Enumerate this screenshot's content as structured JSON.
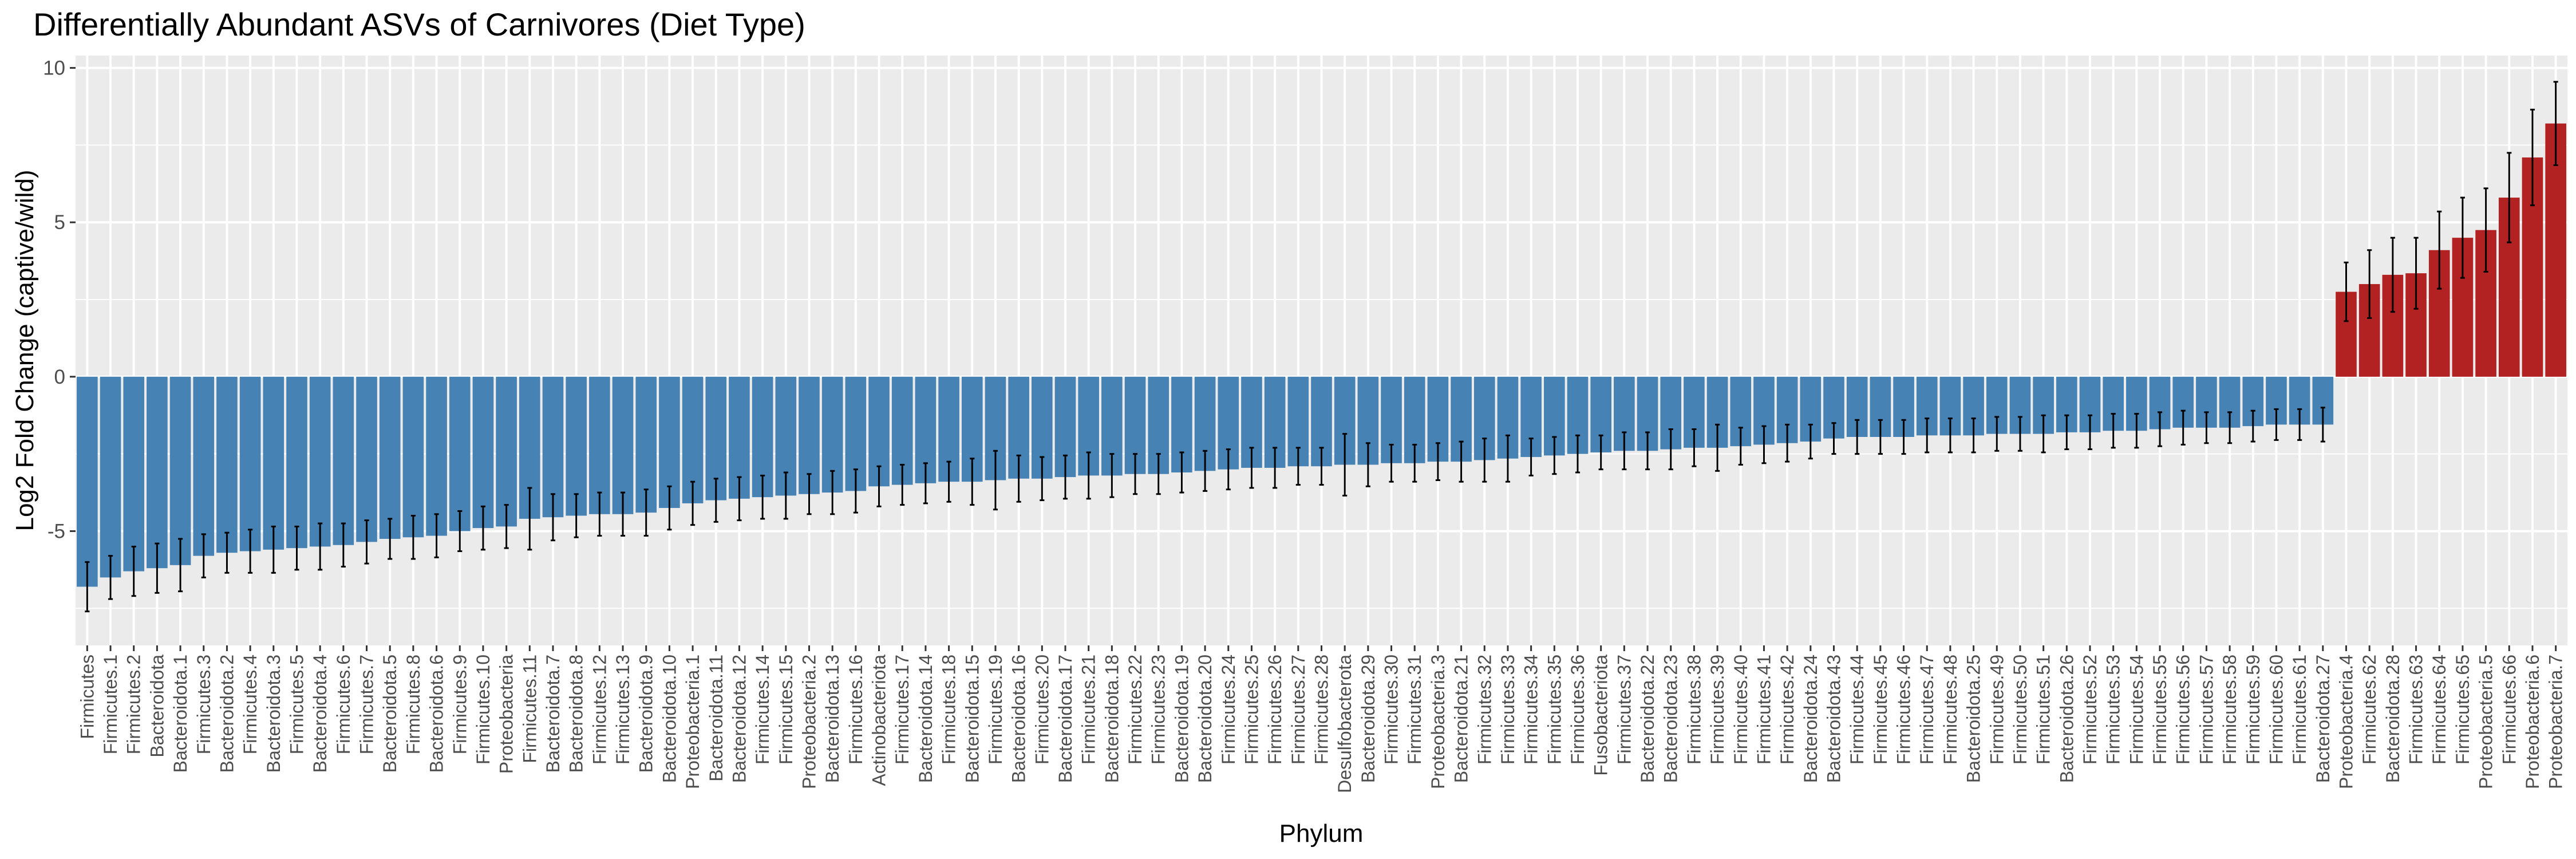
{
  "chart_data": {
    "type": "bar",
    "title": "Differentially Abundant ASVs of Carnivores (Diet Type)",
    "xlabel": "Phylum",
    "ylabel": "Log2 Fold Change (captive/wild)",
    "ylim": [
      -8.7,
      10.4
    ],
    "yticks": [
      -5,
      0,
      5,
      10
    ],
    "grid": true,
    "legend": "none",
    "colors": {
      "negative": "#4682B4",
      "positive": "#B22222",
      "panel": "#EBEBEB",
      "grid": "#FFFFFF",
      "errorbar": "#000000"
    },
    "categories": [
      "Firmicutes",
      "Firmicutes.1",
      "Firmicutes.2",
      "Bacteroidota",
      "Bacteroidota.1",
      "Firmicutes.3",
      "Bacteroidota.2",
      "Firmicutes.4",
      "Bacteroidota.3",
      "Firmicutes.5",
      "Bacteroidota.4",
      "Firmicutes.6",
      "Firmicutes.7",
      "Bacteroidota.5",
      "Firmicutes.8",
      "Bacteroidota.6",
      "Firmicutes.9",
      "Firmicutes.10",
      "Proteobacteria",
      "Firmicutes.11",
      "Bacteroidota.7",
      "Bacteroidota.8",
      "Firmicutes.12",
      "Firmicutes.13",
      "Bacteroidota.9",
      "Bacteroidota.10",
      "Proteobacteria.1",
      "Bacteroidota.11",
      "Bacteroidota.12",
      "Firmicutes.14",
      "Firmicutes.15",
      "Proteobacteria.2",
      "Bacteroidota.13",
      "Firmicutes.16",
      "Actinobacteriota",
      "Firmicutes.17",
      "Bacteroidota.14",
      "Firmicutes.18",
      "Bacteroidota.15",
      "Firmicutes.19",
      "Bacteroidota.16",
      "Firmicutes.20",
      "Bacteroidota.17",
      "Firmicutes.21",
      "Bacteroidota.18",
      "Firmicutes.22",
      "Firmicutes.23",
      "Bacteroidota.19",
      "Bacteroidota.20",
      "Firmicutes.24",
      "Firmicutes.25",
      "Firmicutes.26",
      "Firmicutes.27",
      "Firmicutes.28",
      "Desulfobacterota",
      "Bacteroidota.29",
      "Firmicutes.30",
      "Firmicutes.31",
      "Proteobacteria.3",
      "Bacteroidota.21",
      "Firmicutes.32",
      "Firmicutes.33",
      "Firmicutes.34",
      "Firmicutes.35",
      "Firmicutes.36",
      "Fusobacteriota",
      "Firmicutes.37",
      "Bacteroidota.22",
      "Bacteroidota.23",
      "Firmicutes.38",
      "Firmicutes.39",
      "Firmicutes.40",
      "Firmicutes.41",
      "Firmicutes.42",
      "Bacteroidota.24",
      "Bacteroidota.43",
      "Firmicutes.44",
      "Firmicutes.45",
      "Firmicutes.46",
      "Firmicutes.47",
      "Firmicutes.48",
      "Bacteroidota.25",
      "Firmicutes.49",
      "Firmicutes.50",
      "Firmicutes.51",
      "Bacteroidota.26",
      "Firmicutes.52",
      "Firmicutes.53",
      "Firmicutes.54",
      "Firmicutes.55",
      "Firmicutes.56",
      "Firmicutes.57",
      "Firmicutes.58",
      "Firmicutes.59",
      "Firmicutes.60",
      "Firmicutes.61",
      "Bacteroidota.27",
      "Proteobacteria.4",
      "Firmicutes.62",
      "Bacteroidota.28",
      "Firmicutes.63",
      "Firmicutes.64",
      "Firmicutes.65",
      "Proteobacteria.5",
      "Firmicutes.66",
      "Proteobacteria.6",
      "Proteobacteria.7"
    ],
    "values": [
      -6.8,
      -6.5,
      -6.3,
      -6.2,
      -6.1,
      -5.8,
      -5.7,
      -5.65,
      -5.6,
      -5.55,
      -5.5,
      -5.45,
      -5.35,
      -5.25,
      -5.2,
      -5.15,
      -5.0,
      -4.9,
      -4.85,
      -4.6,
      -4.55,
      -4.5,
      -4.45,
      -4.45,
      -4.4,
      -4.25,
      -4.1,
      -4.0,
      -3.95,
      -3.9,
      -3.85,
      -3.8,
      -3.75,
      -3.7,
      -3.55,
      -3.5,
      -3.45,
      -3.4,
      -3.4,
      -3.35,
      -3.3,
      -3.3,
      -3.25,
      -3.2,
      -3.2,
      -3.15,
      -3.15,
      -3.1,
      -3.05,
      -3.0,
      -2.95,
      -2.95,
      -2.9,
      -2.9,
      -2.85,
      -2.85,
      -2.8,
      -2.8,
      -2.75,
      -2.75,
      -2.7,
      -2.65,
      -2.6,
      -2.55,
      -2.5,
      -2.45,
      -2.4,
      -2.4,
      -2.35,
      -2.3,
      -2.3,
      -2.25,
      -2.2,
      -2.15,
      -2.1,
      -2.0,
      -1.95,
      -1.95,
      -1.95,
      -1.9,
      -1.9,
      -1.9,
      -1.85,
      -1.85,
      -1.85,
      -1.8,
      -1.8,
      -1.75,
      -1.75,
      -1.7,
      -1.65,
      -1.65,
      -1.65,
      -1.6,
      -1.55,
      -1.55,
      -1.55,
      2.75,
      3.0,
      3.3,
      3.35,
      4.1,
      4.5,
      4.75,
      5.8,
      7.1,
      8.2
    ],
    "error": [
      0.8,
      0.7,
      0.8,
      0.8,
      0.85,
      0.7,
      0.65,
      0.7,
      0.75,
      0.7,
      0.75,
      0.7,
      0.7,
      0.65,
      0.7,
      0.7,
      0.65,
      0.7,
      0.7,
      1.0,
      0.75,
      0.7,
      0.7,
      0.7,
      0.75,
      0.7,
      0.7,
      0.7,
      0.7,
      0.7,
      0.75,
      0.65,
      0.7,
      0.7,
      0.65,
      0.65,
      0.65,
      0.65,
      0.75,
      0.95,
      0.75,
      0.7,
      0.7,
      0.75,
      0.7,
      0.65,
      0.65,
      0.65,
      0.65,
      0.65,
      0.65,
      0.65,
      0.6,
      0.6,
      1.0,
      0.7,
      0.6,
      0.6,
      0.6,
      0.65,
      0.7,
      0.75,
      0.6,
      0.6,
      0.6,
      0.55,
      0.6,
      0.6,
      0.65,
      0.6,
      0.75,
      0.6,
      0.6,
      0.6,
      0.55,
      0.5,
      0.55,
      0.55,
      0.55,
      0.55,
      0.55,
      0.55,
      0.55,
      0.55,
      0.6,
      0.55,
      0.55,
      0.55,
      0.55,
      0.55,
      0.55,
      0.5,
      0.5,
      0.5,
      0.5,
      0.5,
      0.55,
      0.95,
      1.1,
      1.2,
      1.15,
      1.25,
      1.3,
      1.35,
      1.45,
      1.55,
      1.35
    ]
  }
}
